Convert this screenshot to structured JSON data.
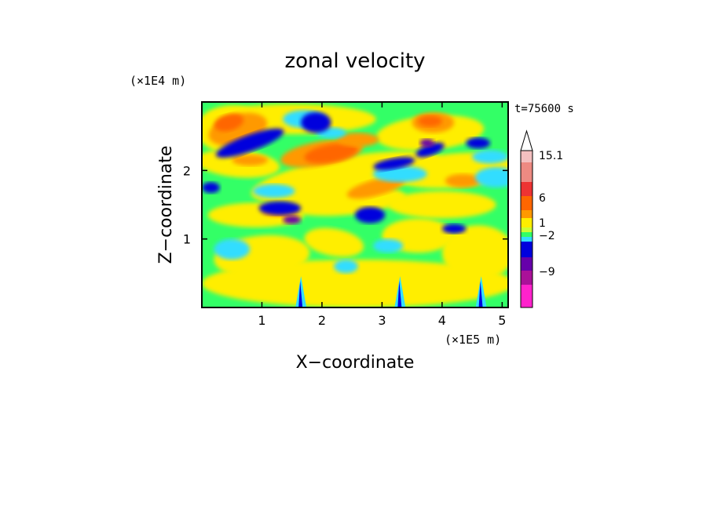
{
  "chart_data": {
    "type": "heatmap",
    "title": "zonal velocity",
    "xlabel": "X−coordinate",
    "ylabel": "Z−coordinate",
    "x_unit": "(×1E5 m)",
    "y_unit": "(×1E4 m)",
    "time_label": "t=75600 s",
    "x_ticks": [
      "1",
      "2",
      "3",
      "4",
      "5"
    ],
    "x_tick_values": [
      1,
      2,
      3,
      4,
      5
    ],
    "y_ticks": [
      "1",
      "2"
    ],
    "y_tick_values": [
      1,
      2
    ],
    "xlim": [
      0,
      5.1
    ],
    "ylim": [
      0,
      3.0
    ],
    "legend_placement": "right",
    "colorbar": {
      "labels": [
        "15.1",
        "6",
        "1",
        "−2",
        "−9"
      ],
      "colors_top_to_bottom": [
        "#f4c0c0",
        "#ee8a82",
        "#ee3333",
        "#ff6600",
        "#ff9900",
        "#ffee00",
        "#ccff33",
        "#33ff66",
        "#33ddff",
        "#0000dd",
        "#6600aa",
        "#aa1199",
        "#ff22cc"
      ],
      "arrow_color": "#ffffff"
    },
    "field_colors": {
      "strong_positive": "#ff6600",
      "positive": "#ff9900",
      "weak_positive": "#ffee00",
      "near_zero": "#33ff66",
      "weak_negative": "#33ddff",
      "negative": "#0000dd",
      "strong_negative": "#6600aa"
    }
  }
}
